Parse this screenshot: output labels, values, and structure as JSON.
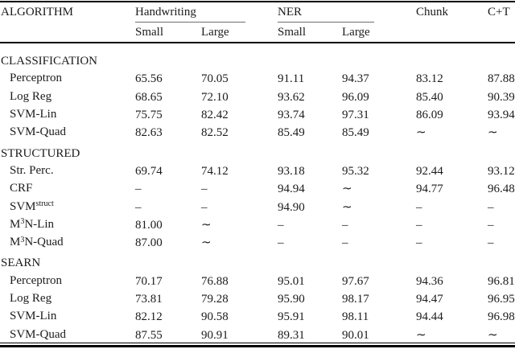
{
  "table": {
    "col1_header": "ALGORITHM",
    "groups": [
      {
        "label": "Handwriting",
        "sub": [
          "Small",
          "Large"
        ]
      },
      {
        "label": "NER",
        "sub": [
          "Small",
          "Large"
        ]
      },
      {
        "label": "Chunk"
      },
      {
        "label": "C+T"
      }
    ],
    "sections": [
      {
        "title": "CLASSIFICATION",
        "rows": [
          {
            "pre": "Perceptron",
            "values": [
              "65.56",
              "70.05",
              "91.11",
              "94.37",
              "83.12",
              "87.88"
            ]
          },
          {
            "pre": "Log Reg",
            "values": [
              "68.65",
              "72.10",
              "93.62",
              "96.09",
              "85.40",
              "90.39"
            ]
          },
          {
            "pre": "SVM-Lin",
            "values": [
              "75.75",
              "82.42",
              "93.74",
              "97.31",
              "86.09",
              "93.94"
            ]
          },
          {
            "pre": "SVM-Quad",
            "values": [
              "82.63",
              "82.52",
              "85.49",
              "85.49",
              "∼",
              "∼"
            ]
          }
        ]
      },
      {
        "title": "STRUCTURED",
        "rows": [
          {
            "pre": "Str. Perc.",
            "values": [
              "69.74",
              "74.12",
              "93.18",
              "95.32",
              "92.44",
              "93.12"
            ]
          },
          {
            "pre": "CRF",
            "values": [
              "–",
              "–",
              "94.94",
              "∼",
              "94.77",
              "96.48"
            ]
          },
          {
            "pre": "SVM",
            "sup": "struct",
            "post": "",
            "values": [
              "–",
              "–",
              "94.90",
              "∼",
              "–",
              "–"
            ]
          },
          {
            "pre": "M",
            "sup": "3",
            "post": "N-Lin",
            "values": [
              "81.00",
              "∼",
              "–",
              "–",
              "–",
              "–"
            ]
          },
          {
            "pre": "M",
            "sup": "3",
            "post": "N-Quad",
            "values": [
              "87.00",
              "∼",
              "–",
              "–",
              "–",
              "–"
            ]
          }
        ]
      },
      {
        "title": "SEARN",
        "rows": [
          {
            "pre": "Perceptron",
            "values": [
              "70.17",
              "76.88",
              "95.01",
              "97.67",
              "94.36",
              "96.81"
            ]
          },
          {
            "pre": "Log Reg",
            "values": [
              "73.81",
              "79.28",
              "95.90",
              "98.17",
              "94.47",
              "96.95"
            ]
          },
          {
            "pre": "SVM-Lin",
            "values": [
              "82.12",
              "90.58",
              "95.91",
              "98.11",
              "94.44",
              "96.98"
            ]
          },
          {
            "pre": "SVM-Quad",
            "values": [
              "87.55",
              "90.91",
              "89.31",
              "90.01",
              "∼",
              "∼"
            ]
          }
        ]
      }
    ]
  }
}
